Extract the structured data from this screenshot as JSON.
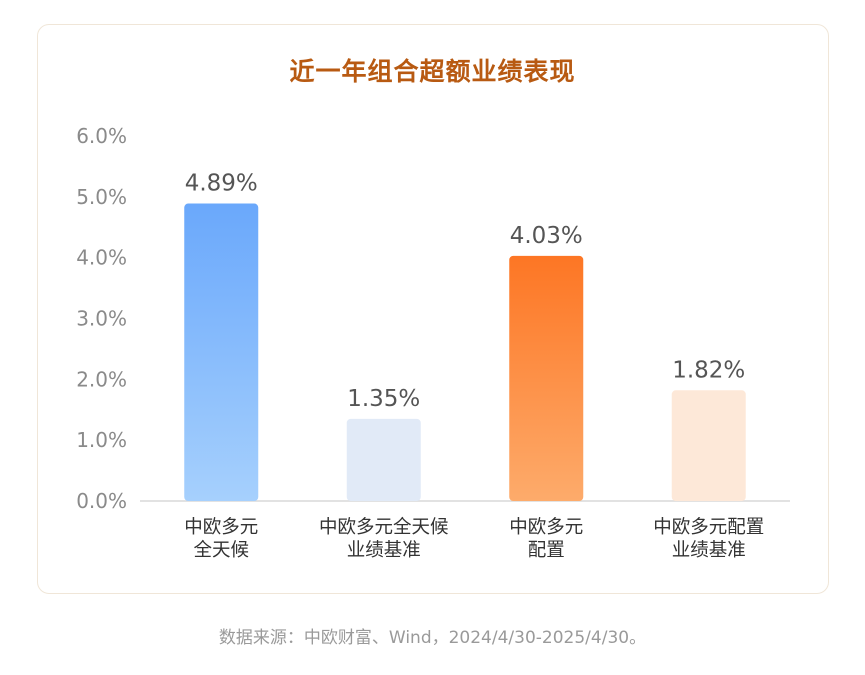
{
  "chart_data": {
    "type": "bar",
    "title": "近一年组合超额业绩表现",
    "categories": [
      [
        "中欧多元",
        "全天候"
      ],
      [
        "中欧多元全天候",
        "业绩基准"
      ],
      [
        "中欧多元",
        "配置"
      ],
      [
        "中欧多元配置",
        "业绩基准"
      ]
    ],
    "values": [
      4.89,
      1.35,
      4.03,
      1.82
    ],
    "value_labels": [
      "4.89%",
      "1.35%",
      "4.03%",
      "1.82%"
    ],
    "ylim": [
      0,
      6
    ],
    "yticks": [
      "0.0%",
      "1.0%",
      "2.0%",
      "3.0%",
      "4.0%",
      "5.0%",
      "6.0%"
    ],
    "bar_colors": [
      [
        "#6aa8fb",
        "#a6d0fd"
      ],
      [
        "#e1eaf7",
        "#e1eaf7"
      ],
      [
        "#fd7624",
        "#fdab6b"
      ],
      [
        "#fde8d8",
        "#fde8d8"
      ]
    ],
    "grid": false
  },
  "source": "数据来源：中欧财富、Wind，2024/4/30-2025/4/30。"
}
